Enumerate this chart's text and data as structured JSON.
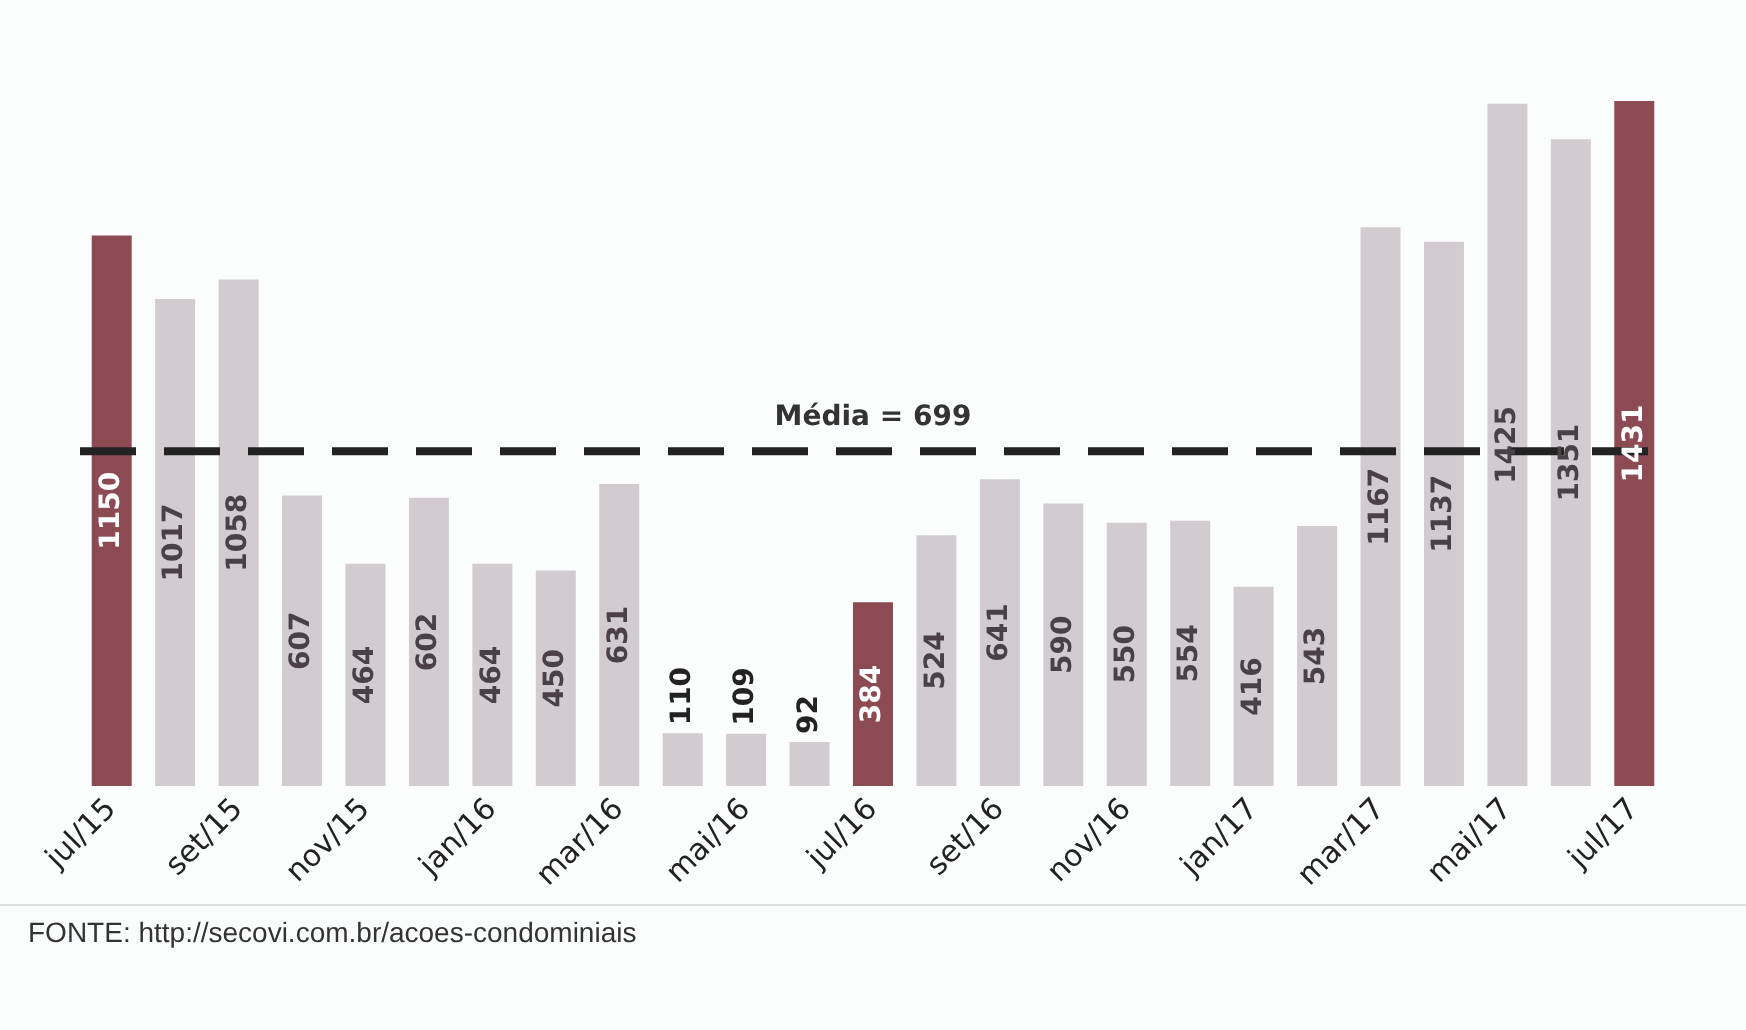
{
  "chart_data": {
    "type": "bar",
    "categories": [
      "jul/15",
      null,
      "set/15",
      null,
      "nov/15",
      null,
      "jan/16",
      null,
      "mar/16",
      null,
      "mai/16",
      null,
      "jul/16",
      null,
      "set/16",
      null,
      "nov/16",
      null,
      "jan/17",
      null,
      "mar/17",
      null,
      "mai/17",
      null,
      "jul/17"
    ],
    "values": [
      1150,
      1017,
      1058,
      607,
      464,
      602,
      464,
      450,
      631,
      110,
      109,
      92,
      384,
      524,
      641,
      590,
      550,
      554,
      416,
      543,
      1167,
      1137,
      1425,
      1351,
      1431
    ],
    "colors": [
      "#8c4a53",
      "#d2cbd0",
      "#d2cbd0",
      "#d2cbd0",
      "#d2cbd0",
      "#d2cbd0",
      "#d2cbd0",
      "#d2cbd0",
      "#d2cbd0",
      "#d2cbd0",
      "#d2cbd0",
      "#d2cbd0",
      "#8c4a53",
      "#d2cbd0",
      "#d2cbd0",
      "#d2cbd0",
      "#d2cbd0",
      "#d2cbd0",
      "#d2cbd0",
      "#d2cbd0",
      "#d2cbd0",
      "#d2cbd0",
      "#d2cbd0",
      "#d2cbd0",
      "#8c4a53"
    ],
    "data_labels": true,
    "ref_lines": [
      {
        "axis": "y",
        "value": 699,
        "label": "Média = 699",
        "color": "#222222",
        "line_style": "dashed"
      }
    ],
    "annotations": [
      "FONTE: http://secovi.com.br/acoes-condominiais"
    ],
    "tick_labels": "x",
    "grid": false,
    "legend": false
  }
}
